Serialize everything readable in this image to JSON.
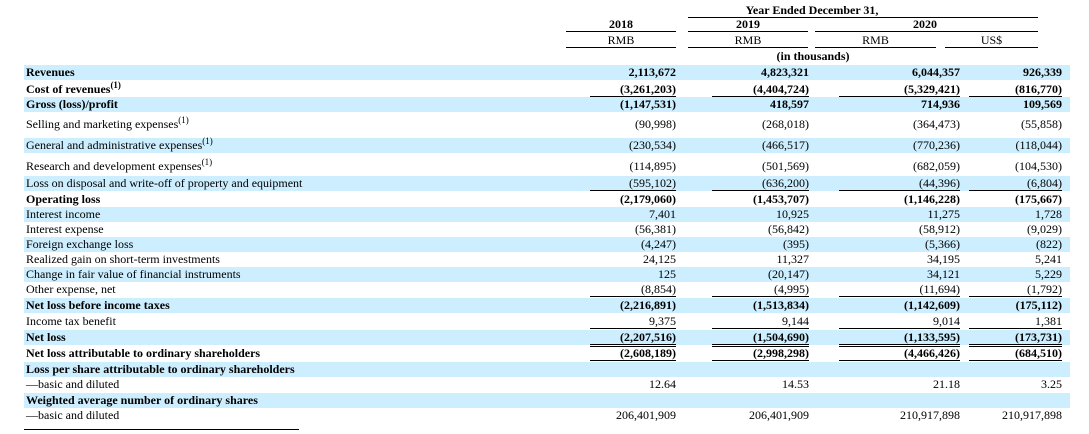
{
  "header": {
    "period": "Year Ended December 31,",
    "years": [
      "2018",
      "2019",
      "2020"
    ],
    "currencies": [
      "RMB",
      "RMB",
      "RMB",
      "US$"
    ],
    "unit_note": "(in thousands)"
  },
  "rows": [
    {
      "label": "Revenues",
      "bold": true,
      "values": [
        "2,113,672",
        "4,823,321",
        "6,044,357",
        "926,339"
      ]
    },
    {
      "label": "Cost of revenues",
      "sup": "(1)",
      "bold": true,
      "values": [
        "(3,261,203)",
        "(4,404,724)",
        "(5,329,421)",
        "(816,770)"
      ]
    },
    {
      "label": "Gross (loss)/profit",
      "bold": true,
      "values": [
        "(1,147,531)",
        "418,597",
        "714,936",
        "109,569"
      ]
    },
    {
      "label": "Selling and marketing expenses",
      "sup": "(1)",
      "bold": false,
      "values": [
        "(90,998)",
        "(268,018)",
        "(364,473)",
        "(55,858)"
      ]
    },
    {
      "label": "General and administrative expenses",
      "sup": "(1)",
      "bold": false,
      "values": [
        "(230,534)",
        "(466,517)",
        "(770,236)",
        "(118,044)"
      ]
    },
    {
      "label": "Research and development expenses",
      "sup": "(1)",
      "bold": false,
      "values": [
        "(114,895)",
        "(501,569)",
        "(682,059)",
        "(104,530)"
      ]
    },
    {
      "label": "Loss on disposal and write-off of property and equipment",
      "bold": false,
      "values": [
        "(595,102)",
        "(636,200)",
        "(44,396)",
        "(6,804)"
      ]
    },
    {
      "label": "Operating loss",
      "bold": true,
      "values": [
        "(2,179,060)",
        "(1,453,707)",
        "(1,146,228)",
        "(175,667)"
      ]
    },
    {
      "label": "Interest income",
      "bold": false,
      "values": [
        "7,401",
        "10,925",
        "11,275",
        "1,728"
      ]
    },
    {
      "label": "Interest expense",
      "bold": false,
      "values": [
        "(56,381)",
        "(56,842)",
        "(58,912)",
        "(9,029)"
      ]
    },
    {
      "label": "Foreign exchange loss",
      "bold": false,
      "values": [
        "(4,247)",
        "(395)",
        "(5,366)",
        "(822)"
      ]
    },
    {
      "label": "Realized gain on short-term investments",
      "bold": false,
      "values": [
        "24,125",
        "11,327",
        "34,195",
        "5,241"
      ]
    },
    {
      "label": "Change in fair value of financial instruments",
      "bold": false,
      "values": [
        "125",
        "(20,147)",
        "34,121",
        "5,229"
      ]
    },
    {
      "label": "Other expense, net",
      "bold": false,
      "values": [
        "(8,854)",
        "(4,995)",
        "(11,694)",
        "(1,792)"
      ]
    },
    {
      "label": "Net loss before income taxes",
      "bold": true,
      "values": [
        "(2,216,891)",
        "(1,513,834)",
        "(1,142,609)",
        "(175,112)"
      ]
    },
    {
      "label": "Income tax benefit",
      "bold": false,
      "values": [
        "9,375",
        "9,144",
        "9,014",
        "1,381"
      ]
    },
    {
      "label": "Net loss",
      "bold": true,
      "values": [
        "(2,207,516)",
        "(1,504,690)",
        "(1,133,595)",
        "(173,731)"
      ]
    },
    {
      "label": "Net loss attributable to ordinary shareholders",
      "bold": true,
      "values": [
        "(2,608,189)",
        "(2,998,298)",
        "(4,466,426)",
        "(684,510)"
      ]
    },
    {
      "label": "Loss per share attributable to ordinary shareholders",
      "bold": true,
      "values": [
        "",
        "",
        "",
        ""
      ]
    },
    {
      "label": "—basic and diluted",
      "bold": false,
      "values": [
        "12.64",
        "14.53",
        "21.18",
        "3.25"
      ]
    },
    {
      "label": "Weighted average number of ordinary shares",
      "bold": true,
      "values": [
        "",
        "",
        "",
        ""
      ]
    },
    {
      "label": "—basic and diluted",
      "bold": false,
      "values": [
        "206,401,909",
        "206,401,909",
        "210,917,898",
        "210,917,898"
      ]
    }
  ]
}
